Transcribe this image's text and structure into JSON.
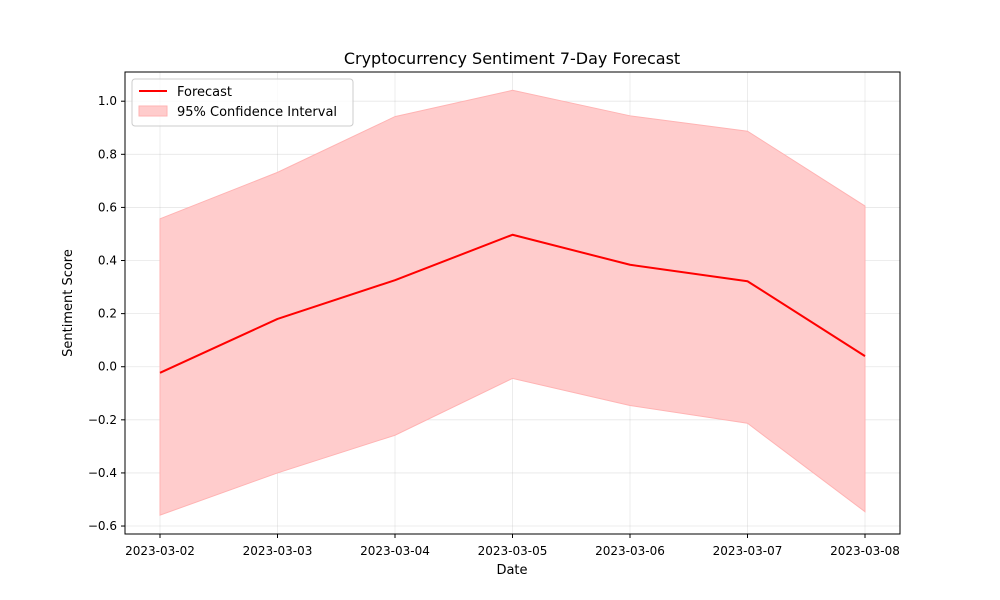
{
  "chart_data": {
    "type": "line",
    "title": "Cryptocurrency Sentiment 7-Day Forecast",
    "xlabel": "Date",
    "ylabel": "Sentiment Score",
    "x": [
      "2023-03-02",
      "2023-03-03",
      "2023-03-04",
      "2023-03-05",
      "2023-03-06",
      "2023-03-07",
      "2023-03-08"
    ],
    "series": [
      {
        "name": "Forecast",
        "color": "#ff0000",
        "values": [
          -0.023,
          0.18,
          0.326,
          0.497,
          0.384,
          0.322,
          0.04
        ]
      }
    ],
    "band": {
      "name": "95% Confidence Interval",
      "color": "#ffcccc",
      "edge_color": "#ffb3b3",
      "lower": [
        -0.559,
        -0.4,
        -0.258,
        -0.044,
        -0.146,
        -0.213,
        -0.546
      ],
      "upper": [
        0.557,
        0.732,
        0.942,
        1.041,
        0.945,
        0.887,
        0.605
      ]
    },
    "xlim": [
      "2023-03-02",
      "2023-03-08"
    ],
    "ylim": [
      -0.63,
      1.11
    ],
    "yticks": [
      -0.6,
      -0.4,
      -0.2,
      0.0,
      0.2,
      0.4,
      0.6,
      0.8,
      1.0
    ],
    "ytick_labels": [
      "−0.6",
      "−0.4",
      "−0.2",
      "0.0",
      "0.2",
      "0.4",
      "0.6",
      "0.8",
      "1.0"
    ],
    "grid": true,
    "legend_position": "top-left"
  }
}
